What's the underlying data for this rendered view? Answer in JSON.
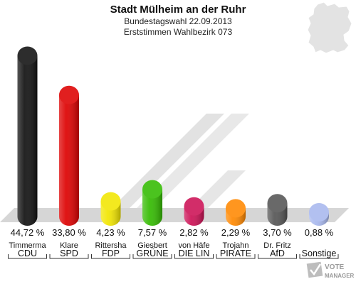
{
  "chart_data": {
    "type": "bar",
    "title": "Stadt Mülheim an der Ruhr",
    "subtitle_lines": [
      "Bundestagswahl 22.09.2013",
      "Erststimmen Wahlbezirk 073"
    ],
    "unit": "%",
    "ylim": [
      0,
      46
    ],
    "bars": [
      {
        "party": "CDU",
        "candidate": "Timmerma",
        "value": 44.72,
        "label": "44,72 %",
        "color": "#111111"
      },
      {
        "party": "SPD",
        "candidate": "Klare",
        "value": 33.8,
        "label": "33,80 %",
        "color": "#dd0000"
      },
      {
        "party": "FDP",
        "candidate": "Rittersha",
        "value": 4.23,
        "label": "4,23 %",
        "color": "#f2e600"
      },
      {
        "party": "GRÜNE",
        "candidate": "Giesbert",
        "value": 7.57,
        "label": "7,57 %",
        "color": "#33bb00"
      },
      {
        "party": "DIE LIN",
        "candidate": "von Häfe",
        "value": 2.82,
        "label": "2,82 %",
        "color": "#cc1155"
      },
      {
        "party": "PIRATE",
        "candidate": "Trojahn",
        "value": 2.29,
        "label": "2,29 %",
        "color": "#ff8800"
      },
      {
        "party": "AfD",
        "candidate": "Dr. Fritz",
        "value": 3.7,
        "label": "3,70 %",
        "color": "#555555"
      },
      {
        "party": "Sonstige",
        "candidate": "",
        "value": 0.88,
        "label": "0,88 %",
        "color": "#a8b8ee"
      }
    ]
  },
  "watermark": {
    "line1": "VOTE",
    "line2": "MANAGER"
  }
}
